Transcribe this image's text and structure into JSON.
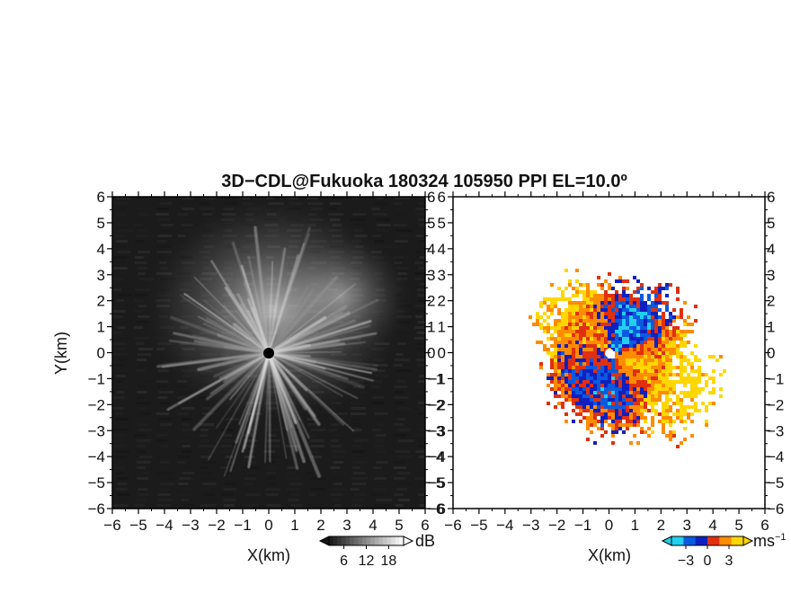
{
  "title": "3D−CDL@Fukuoka 180324 105950 PPI EL=10.0º",
  "chart_data": [
    {
      "panel": "reflectivity",
      "type": "heatmap",
      "xlabel": "X(km)",
      "ylabel": "Y(km)",
      "xlim": [
        -6,
        6
      ],
      "ylim": [
        -6,
        6
      ],
      "x_ticks": [
        -6,
        -5,
        -4,
        -3,
        -2,
        -1,
        0,
        1,
        2,
        3,
        4,
        5,
        6
      ],
      "y_ticks": [
        -6,
        -5,
        -4,
        -3,
        -2,
        -1,
        0,
        1,
        2,
        3,
        4,
        5,
        6
      ],
      "x_tick_labels": [
        "−6",
        "−5",
        "−4",
        "−3",
        "−2",
        "−1",
        "0",
        "1",
        "2",
        "3",
        "4",
        "5",
        "6"
      ],
      "y_tick_labels": [
        "−6",
        "−5",
        "−4",
        "−3",
        "−2",
        "−1",
        "0",
        "1",
        "2",
        "3",
        "4",
        "5",
        "6"
      ],
      "colorbar": {
        "unit": "dB",
        "ticks": [
          "6",
          "12",
          "18"
        ],
        "colors": [
          "#000000",
          "#555555",
          "#aaaaaa",
          "#ffffff"
        ],
        "extends": "both"
      },
      "colors": {
        "background": "#1b1b1b",
        "echo": "#e8e8e8",
        "center": "#000000"
      }
    },
    {
      "panel": "doppler-velocity",
      "type": "heatmap",
      "xlabel": "X(km)",
      "ylabel": "",
      "xlim": [
        -6,
        6
      ],
      "ylim": [
        -6,
        6
      ],
      "x_ticks": [
        -6,
        -5,
        -4,
        -3,
        -2,
        -1,
        0,
        1,
        2,
        3,
        4,
        5,
        6
      ],
      "y_ticks": [
        -6,
        -5,
        -4,
        -3,
        -2,
        -1,
        0,
        1,
        2,
        3,
        4,
        5,
        6
      ],
      "x_tick_labels": [
        "−6",
        "−5",
        "−4",
        "−3",
        "−2",
        "−1",
        "0",
        "1",
        "2",
        "3",
        "4",
        "5",
        "6"
      ],
      "y_tick_labels": [
        "−6",
        "−5",
        "−4",
        "−3",
        "−2",
        "−1",
        "0",
        "1",
        "2",
        "3",
        "4",
        "5",
        "6"
      ],
      "colorbar": {
        "unit": "ms",
        "unit_exponent": "−1",
        "ticks": [
          "−3",
          "0",
          "3"
        ],
        "colors": [
          "#20d0f0",
          "#0a5ae0",
          "#1020c0",
          "#e03010",
          "#ff8c00",
          "#ffd700"
        ],
        "extends": "both"
      },
      "colors": {
        "background": "#ffffff",
        "center": "#ffffff"
      }
    }
  ]
}
